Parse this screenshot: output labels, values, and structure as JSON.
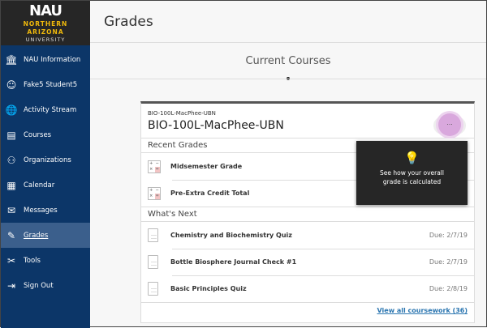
{
  "logo": {
    "line1": "NAU",
    "line2": "NORTHERN",
    "line3": "ARIZONA",
    "line4": "UNIVERSITY"
  },
  "sidebar": {
    "items": [
      {
        "label": "NAU Information",
        "icon": "institution-icon"
      },
      {
        "label": "Fake5 Student5",
        "icon": "user-icon"
      },
      {
        "label": "Activity Stream",
        "icon": "globe-icon"
      },
      {
        "label": "Courses",
        "icon": "courses-icon"
      },
      {
        "label": "Organizations",
        "icon": "organizations-icon"
      },
      {
        "label": "Calendar",
        "icon": "calendar-icon"
      },
      {
        "label": "Messages",
        "icon": "envelope-icon"
      },
      {
        "label": "Grades",
        "icon": "grades-icon",
        "active": true
      },
      {
        "label": "Tools",
        "icon": "tools-icon"
      },
      {
        "label": "Sign Out",
        "icon": "sign-out-icon"
      }
    ]
  },
  "header": {
    "title": "Grades"
  },
  "section": {
    "title": "Current Courses"
  },
  "course": {
    "code": "BIO-100L-MacPhee-UBN",
    "title": "BIO-100L-MacPhee-UBN",
    "menu_label": "...",
    "recent_grades_title": "Recent Grades",
    "recent_grades": [
      {
        "name": "Midsemester Grade"
      },
      {
        "name": "Pre-Extra Credit Total"
      }
    ],
    "whats_next_title": "What's Next",
    "whats_next": [
      {
        "name": "Chemistry and Biochemistry Quiz",
        "due": "Due: 2/7/19"
      },
      {
        "name": "Bottle Biosphere Journal Check #1",
        "due": "Due: 2/7/19"
      },
      {
        "name": "Basic Principles Quiz",
        "due": "Due: 2/8/19"
      }
    ],
    "view_all": "View all coursework (36)"
  },
  "tooltip": {
    "text": "See how your overall grade is calculated",
    "icon": "lightbulb-icon"
  }
}
